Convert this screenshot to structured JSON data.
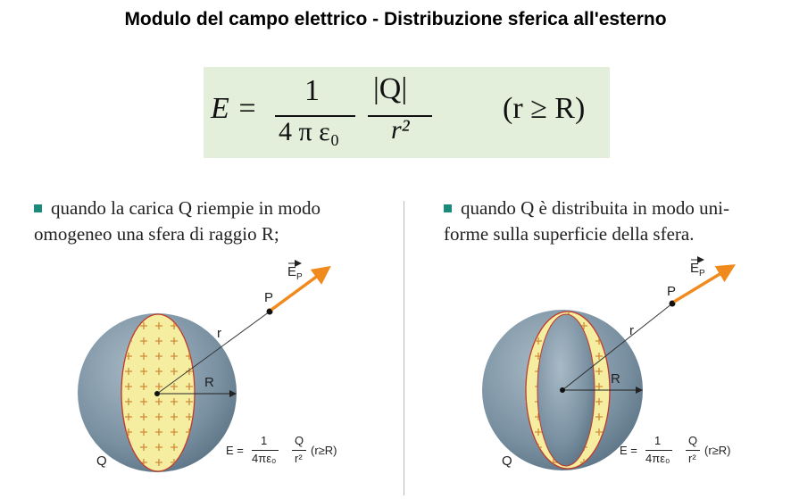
{
  "title": "Modulo del campo elettrico - Distribuzione sferica all'esterno",
  "formula": {
    "lhs": "E =",
    "num1": "1",
    "den1": "4 π ε₀",
    "num2": "|Q|",
    "den2": "r²",
    "cond": "(r ≥ R)"
  },
  "left": {
    "text_line1": "quando la carica Q riempie in modo",
    "text_line2": "omogeneo una sfera di raggio R;",
    "labels": {
      "E": "E",
      "Esub": "P",
      "P": "P",
      "r": "r",
      "R": "R",
      "Q": "Q"
    },
    "formula": {
      "lhs": "E =",
      "num1": "1",
      "den1": "4πε₀",
      "num2": "Q",
      "den2": "r²",
      "cond": "(r≥R)"
    }
  },
  "right": {
    "text_line1": "quando Q è distribuita in modo uni-",
    "text_line2": "forme sulla superficie della sfera.",
    "labels": {
      "E": "E",
      "Esub": "P",
      "P": "P",
      "r": "r",
      "R": "R",
      "Q": "Q"
    },
    "formula": {
      "lhs": "E =",
      "num1": "1",
      "den1": "4πε₀",
      "num2": "Q",
      "den2": "r²",
      "cond": "(r≥R)"
    }
  },
  "colors": {
    "formula_bg": "#e3efdb",
    "sphere": "#7b92a3",
    "charge": "#f5eea0",
    "arrow": "#f08a1c",
    "bullet": "#1a8a7a"
  }
}
